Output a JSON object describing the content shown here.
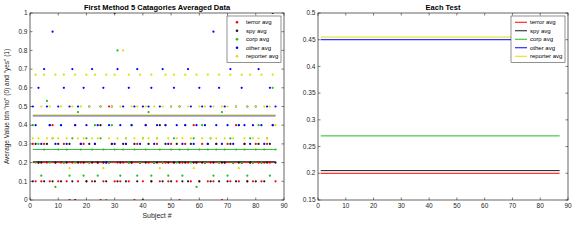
{
  "chart_data": [
    {
      "type": "scatter",
      "title": "First Method 5 Catagories Averaged Data",
      "x_label": "Subject #",
      "y_label": "Average Value btn \"no\" (0) and \"yes\" (1)",
      "x": [
        1,
        2,
        3,
        4,
        5,
        6,
        7,
        8,
        9,
        10,
        11,
        12,
        13,
        14,
        15,
        16,
        17,
        18,
        19,
        20,
        21,
        22,
        23,
        24,
        25,
        26,
        27,
        28,
        29,
        30,
        31,
        32,
        33,
        34,
        35,
        36,
        37,
        38,
        39,
        40,
        41,
        42,
        43,
        44,
        45,
        46,
        47,
        48,
        49,
        50,
        51,
        52,
        53,
        54,
        55,
        56,
        57,
        58,
        59,
        60,
        61,
        62,
        63,
        64,
        65,
        66,
        67,
        68,
        69,
        70,
        71,
        72,
        73,
        74,
        75,
        76,
        77,
        78,
        79,
        80,
        81,
        82,
        83,
        84,
        85,
        86,
        87
      ],
      "xlim": [
        0,
        90
      ],
      "xticks": [
        0,
        10,
        20,
        30,
        40,
        50,
        60,
        70,
        80,
        90
      ],
      "ylim": [
        0,
        1
      ],
      "yticks": [
        0,
        0.1,
        0.2,
        0.3,
        0.4,
        0.5,
        0.6,
        0.7,
        0.8,
        0.9,
        1
      ],
      "grid": false,
      "legend": "upper right",
      "series": [
        {
          "name": "terror avg",
          "color": "#ff0000",
          "marker": "point",
          "mean": 0.2,
          "values": [
            0.3,
            0.1,
            0.2,
            0.1,
            0.3,
            0.2,
            0.1,
            0.4,
            0.2,
            0.1,
            0.2,
            0.3,
            0.1,
            0,
            0.2,
            0.4,
            0.1,
            0.2,
            0.3,
            0.1,
            0.2,
            0.1,
            0.3,
            0.2,
            0,
            0.1,
            0.2,
            0.5,
            0.3,
            0.1,
            0.2,
            0.1,
            0.2,
            0.3,
            0.1,
            0.2,
            0,
            0.3,
            0.2,
            0.1,
            0.4,
            0.2,
            0.1,
            0.2,
            0.3,
            0.1,
            0.2,
            0.2,
            0.1,
            0.3,
            0.2,
            0.1,
            0,
            0.2,
            0.3,
            0.2,
            0.1,
            0.4,
            0.2,
            0.1,
            0.3,
            0.2,
            0.1,
            0.2,
            0.1,
            0.3,
            0.2,
            0,
            0.2,
            0.3,
            0.1,
            0.2,
            0.4,
            0.1,
            0.2,
            0.3,
            0.1,
            0.2,
            0.1,
            0.3,
            0.2,
            0.1,
            0.2,
            0.3,
            0.2,
            0.4,
            0.1
          ]
        },
        {
          "name": "spy avg",
          "color": "#1a1a1a",
          "marker": "point",
          "mean": 0.205,
          "values": [
            0.1,
            0.3,
            0.2,
            0.2,
            0.1,
            0.3,
            0.4,
            0.1,
            0.2,
            0.3,
            0.1,
            0.2,
            0.2,
            0.3,
            0.1,
            0,
            0.2,
            0.3,
            0.2,
            0.1,
            0.3,
            0.2,
            0.1,
            0.2,
            0.4,
            0.2,
            0.1,
            0.2,
            0.3,
            1,
            0.1,
            0.2,
            0.3,
            0.1,
            0.2,
            0.2,
            0.3,
            0.1,
            0.2,
            0,
            0.2,
            0.3,
            0.1,
            0.2,
            0.2,
            0.4,
            0.1,
            0.3,
            0.2,
            0.1,
            0.2,
            0.3,
            0.2,
            0.1,
            0.2,
            0.1,
            0.3,
            0.2,
            0.2,
            0.1,
            0.2,
            0.2,
            0.3,
            0.1,
            0.2,
            0.3,
            0.1,
            0.2,
            0.2,
            0.1,
            0.3,
            0.2,
            0.1,
            0.2,
            0.2,
            0.3,
            0.1,
            0.2,
            0.2,
            0.1,
            0.3,
            0.2,
            0.1,
            0.2,
            0.3,
            1,
            0.2
          ]
        },
        {
          "name": "corp avg",
          "color": "#22bb22",
          "marker": "point",
          "mean": 0.27,
          "values": [
            0.4,
            0.2,
            0.3,
            0.13,
            0.27,
            0.53,
            0.2,
            0.33,
            0.07,
            0.27,
            0.4,
            0.2,
            0.27,
            0.13,
            0.33,
            0.2,
            0.47,
            0.27,
            0.13,
            0.33,
            0.2,
            0.27,
            0.4,
            0.13,
            0.33,
            0.27,
            0,
            0.2,
            0.4,
            0.27,
            0.8,
            0.13,
            0.27,
            0.33,
            0.2,
            0.4,
            0.27,
            0.13,
            0.2,
            0.33,
            0.27,
            0.47,
            0.13,
            0.2,
            0.33,
            0.27,
            0.2,
            0.4,
            0.13,
            0.27,
            0.33,
            0.2,
            0.27,
            0.13,
            0.4,
            0.27,
            0.2,
            0.33,
            0.07,
            0.27,
            0.4,
            0.2,
            0.27,
            0.33,
            0.13,
            0.27,
            0.2,
            0.47,
            0.27,
            0.13,
            0.33,
            0.2,
            0.27,
            0.4,
            0.2,
            0.27,
            0.13,
            0.33,
            0.2,
            0.27,
            0.4,
            0.2,
            0.27,
            0.33,
            0.13,
            0.6,
            0.27
          ]
        },
        {
          "name": "other avg",
          "color": "#0000ff",
          "marker": "point",
          "mean": 0.45,
          "values": [
            0.5,
            0.4,
            0.6,
            0.3,
            0.7,
            0.5,
            0.4,
            0.9,
            0.3,
            0.5,
            0.4,
            0.6,
            0.3,
            0.5,
            0.7,
            0.4,
            0.5,
            0.3,
            0.6,
            0.4,
            0.5,
            0.7,
            0.3,
            0.4,
            0.5,
            0.6,
            0.2,
            0.4,
            0.5,
            0.3,
            0.7,
            0.4,
            0.5,
            0.3,
            0.6,
            0.4,
            0.5,
            0.7,
            0.3,
            0.5,
            0.4,
            0.5,
            0.6,
            0.3,
            0.4,
            0.5,
            0.7,
            0.4,
            0.3,
            0.5,
            0.6,
            0.4,
            0.5,
            0.3,
            0.4,
            0.7,
            0.5,
            0.3,
            0.4,
            0.6,
            0.5,
            0.4,
            0.3,
            0.5,
            0.9,
            0.4,
            0.6,
            0.3,
            0.5,
            0.4,
            0.7,
            0.3,
            0.5,
            0.4,
            0.6,
            0.4,
            0.5,
            0.3,
            0.4,
            0.5,
            0.7,
            0.4,
            0.3,
            0.5,
            0.6,
            0.4,
            0.5
          ]
        },
        {
          "name": "reporter avg",
          "color": "#e0e000",
          "marker": "point",
          "mean": 0.455,
          "values": [
            0.33,
            0.67,
            0.33,
            0.5,
            0.67,
            0.33,
            0.5,
            0.33,
            0.67,
            0.33,
            0.5,
            0.67,
            0.33,
            0.17,
            0.5,
            0.67,
            0.33,
            0.5,
            0.33,
            0.67,
            0.5,
            0.33,
            0.67,
            0.33,
            0.5,
            0.17,
            0.67,
            0.33,
            0.5,
            0.67,
            0.33,
            0.5,
            0.8,
            0.33,
            0.67,
            0.5,
            0.33,
            0.5,
            0.67,
            0.33,
            0.5,
            0.33,
            0.67,
            0.5,
            0.33,
            0.17,
            0.5,
            0.67,
            0.33,
            0.5,
            0.67,
            0.33,
            0.5,
            0.33,
            0.67,
            0.5,
            0.33,
            0.17,
            0.67,
            0.5,
            0.33,
            0.5,
            0.67,
            0.33,
            0.5,
            0.33,
            0.67,
            0.5,
            0.33,
            0.5,
            0.67,
            0.33,
            0.5,
            0.17,
            0.67,
            0.33,
            0.5,
            0.67,
            0.33,
            0.5,
            0.33,
            0.67,
            0.5,
            0.33,
            0.5,
            0.67,
            0.4
          ]
        }
      ]
    },
    {
      "type": "line",
      "title": "Each Test",
      "x": [
        1,
        87
      ],
      "xlim": [
        0,
        90
      ],
      "xticks": [
        0,
        10,
        20,
        30,
        40,
        50,
        60,
        70,
        80,
        90
      ],
      "ylim": [
        0.15,
        0.5
      ],
      "yticks": [
        0.15,
        0.2,
        0.25,
        0.3,
        0.35,
        0.4,
        0.45,
        0.5
      ],
      "grid": false,
      "legend": "upper right",
      "series": [
        {
          "name": "terror avg",
          "color": "#ff0000",
          "line_style": "solid",
          "values": [
            0.2,
            0.2
          ]
        },
        {
          "name": "spy avg",
          "color": "#1a1a1a",
          "line_style": "solid",
          "values": [
            0.205,
            0.205
          ]
        },
        {
          "name": "corp avg",
          "color": "#22bb22",
          "line_style": "solid",
          "values": [
            0.27,
            0.27
          ]
        },
        {
          "name": "other avg",
          "color": "#0000ff",
          "line_style": "solid",
          "values": [
            0.45,
            0.45
          ]
        },
        {
          "name": "reporter avg",
          "color": "#e0e000",
          "line_style": "solid",
          "values": [
            0.455,
            0.455
          ]
        }
      ]
    }
  ]
}
